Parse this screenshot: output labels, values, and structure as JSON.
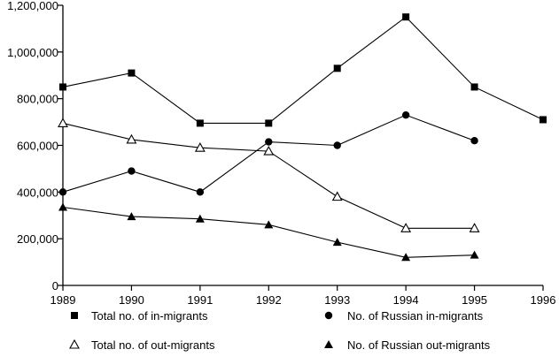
{
  "chart_data": {
    "type": "line",
    "title": "",
    "xlabel": "",
    "ylabel": "",
    "x": [
      1989,
      1990,
      1991,
      1992,
      1993,
      1994,
      1995,
      1996
    ],
    "x_tick_labels": [
      "1989",
      "1990",
      "1991",
      "1992",
      "1993",
      "1994",
      "1995",
      "1996"
    ],
    "xlim": [
      1989,
      1996
    ],
    "ylim": [
      0,
      1200000
    ],
    "y_ticks": [
      0,
      200000,
      400000,
      600000,
      800000,
      1000000,
      1200000
    ],
    "y_tick_labels": [
      "0",
      "200,000",
      "400,000",
      "600,000",
      "800,000",
      "1,000,000",
      "1,200,000"
    ],
    "grid": false,
    "legend_position": "bottom",
    "series": [
      {
        "name": "Total no. of in-migrants",
        "marker": "filled-square",
        "values": [
          850000,
          910000,
          695000,
          695000,
          930000,
          1150000,
          850000,
          710000
        ]
      },
      {
        "name": "No. of Russian in-migrants",
        "marker": "filled-circle",
        "values": [
          400000,
          490000,
          400000,
          615000,
          600000,
          730000,
          620000,
          null
        ]
      },
      {
        "name": "Total no. of out-migrants",
        "marker": "open-triangle",
        "values": [
          695000,
          625000,
          590000,
          575000,
          380000,
          245000,
          245000,
          null
        ]
      },
      {
        "name": "No. of Russian out-migrants",
        "marker": "filled-triangle",
        "values": [
          335000,
          295000,
          285000,
          260000,
          185000,
          120000,
          130000,
          null
        ]
      }
    ]
  }
}
